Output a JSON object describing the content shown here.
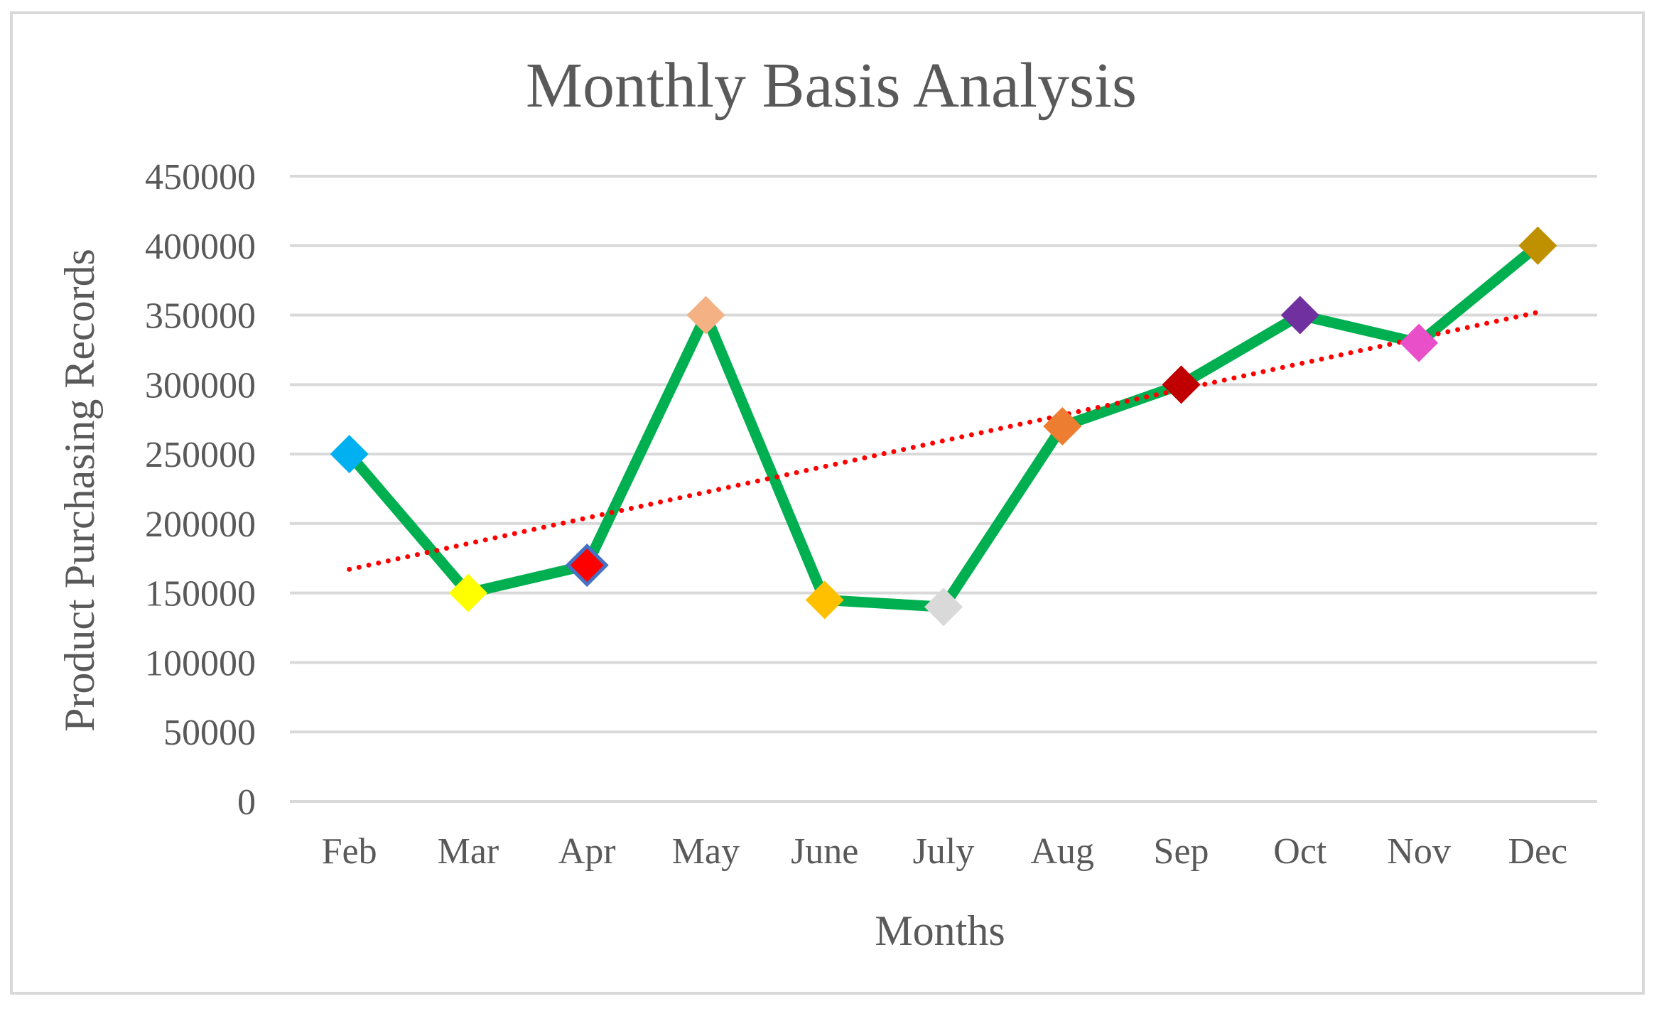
{
  "chart_data": {
    "type": "line",
    "title": "Monthly Basis Analysis",
    "xlabel": "Months",
    "ylabel": "Product Purchasing Records",
    "categories": [
      "Feb",
      "Mar",
      "Apr",
      "May",
      "June",
      "July",
      "Aug",
      "Sep",
      "Oct",
      "Nov",
      "Dec"
    ],
    "series": [
      {
        "values": [
          250000,
          150000,
          170000,
          350000,
          145000,
          140000,
          270000,
          300000,
          350000,
          330000,
          400000
        ],
        "line_color": "#00b050",
        "marker_colors": [
          "#00b0f0",
          "#ffff00",
          "#ff0000",
          "#f4b183",
          "#ffc000",
          "#d9d9d9",
          "#ed7d31",
          "#c00000",
          "#7030a0",
          "#e84fc8",
          "#bf9000"
        ]
      }
    ],
    "trendline": {
      "type": "linear",
      "color": "#ff0000",
      "style": "dotted"
    },
    "ylim": [
      0,
      450000
    ],
    "yticks": [
      0,
      50000,
      100000,
      150000,
      200000,
      250000,
      300000,
      350000,
      400000,
      450000
    ],
    "grid": true,
    "legend": "none"
  }
}
